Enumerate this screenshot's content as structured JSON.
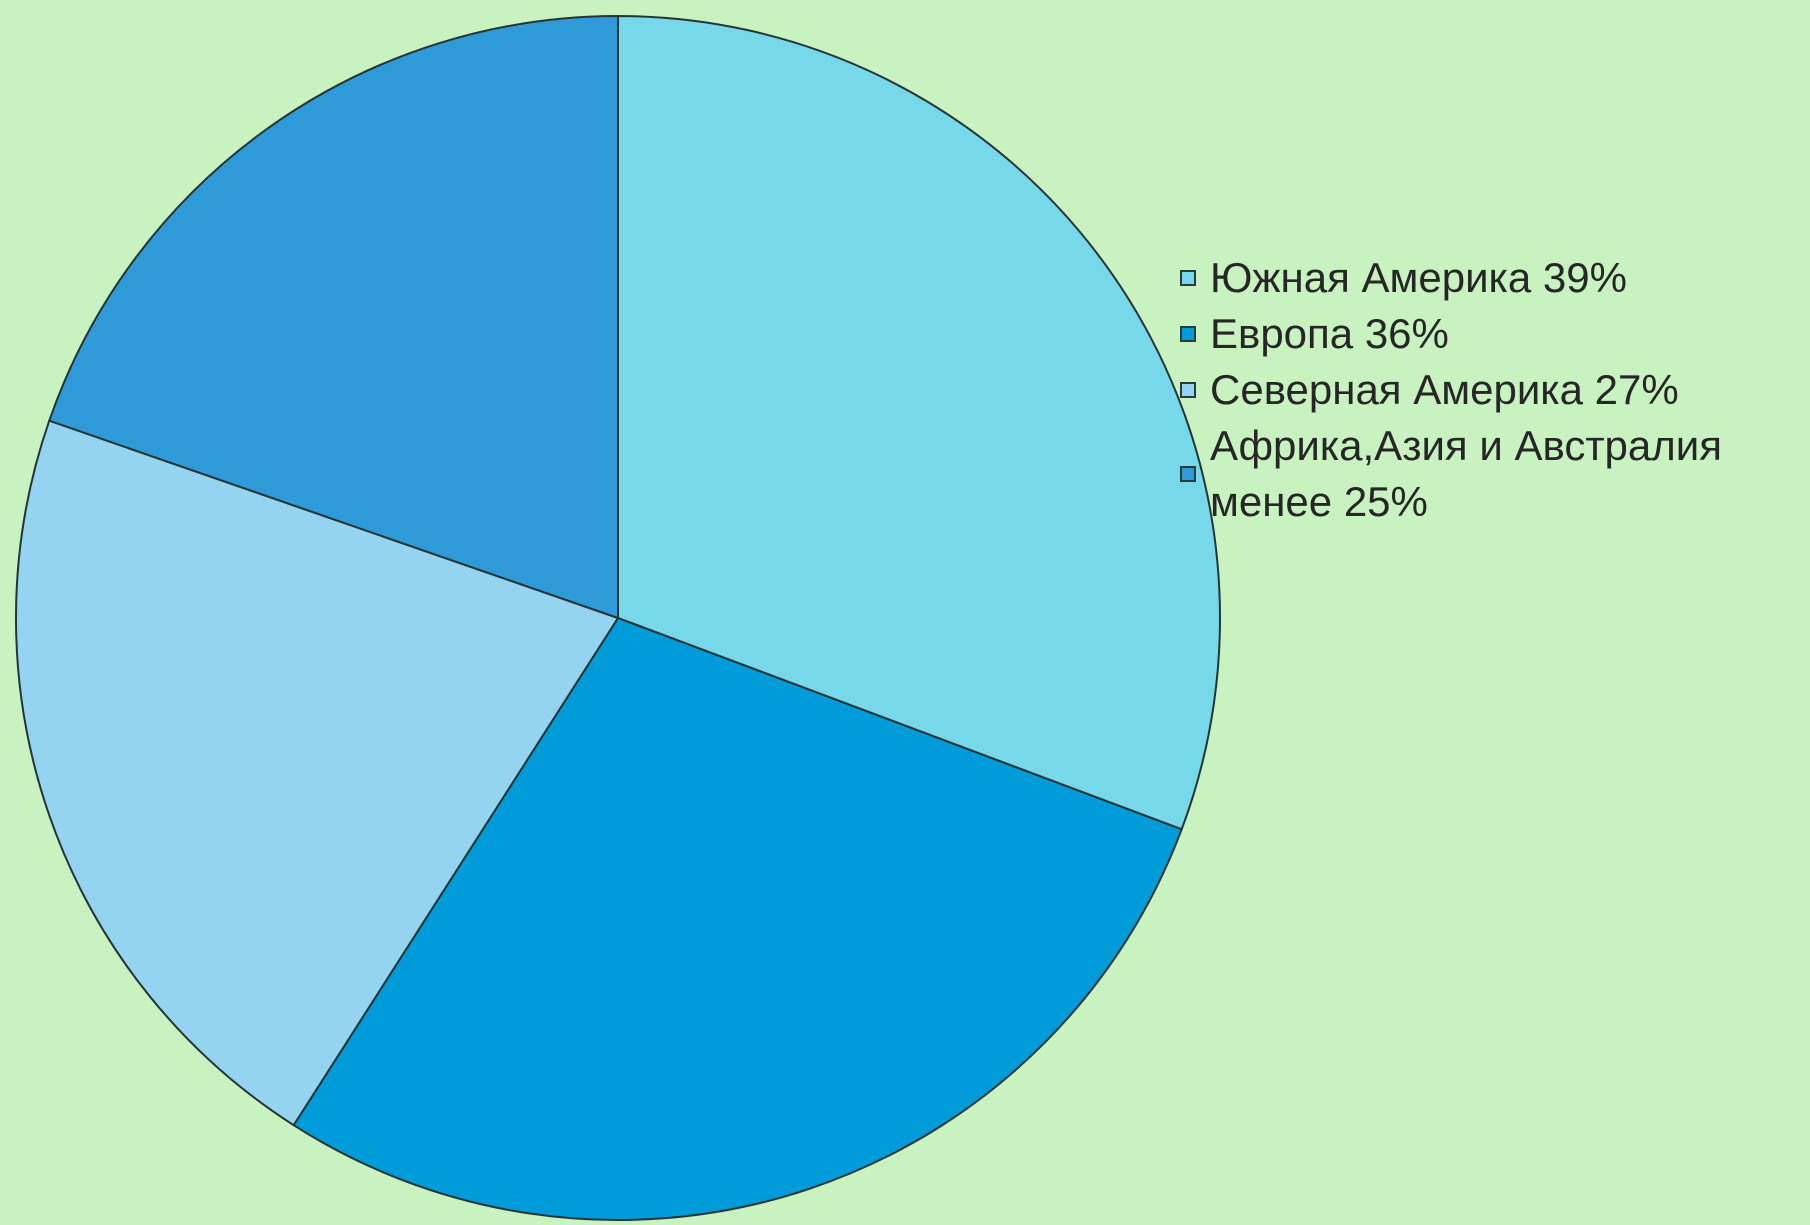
{
  "chart_data": {
    "type": "pie",
    "title": "",
    "slices": [
      {
        "label": "Южная Америка 39%",
        "value": 39,
        "color": "#76d8e8"
      },
      {
        "label": "Европа 36%",
        "value": 36,
        "color": "#009bd9"
      },
      {
        "label": "Северная Америка 27%",
        "value": 27,
        "color": "#94d4f0"
      },
      {
        "label": "Африка,Азия и Австралия менее 25%",
        "value": 25,
        "color": "#2f9ad8"
      }
    ],
    "legend": "right",
    "background": "#c8f2c0",
    "border_color": "#253535"
  }
}
